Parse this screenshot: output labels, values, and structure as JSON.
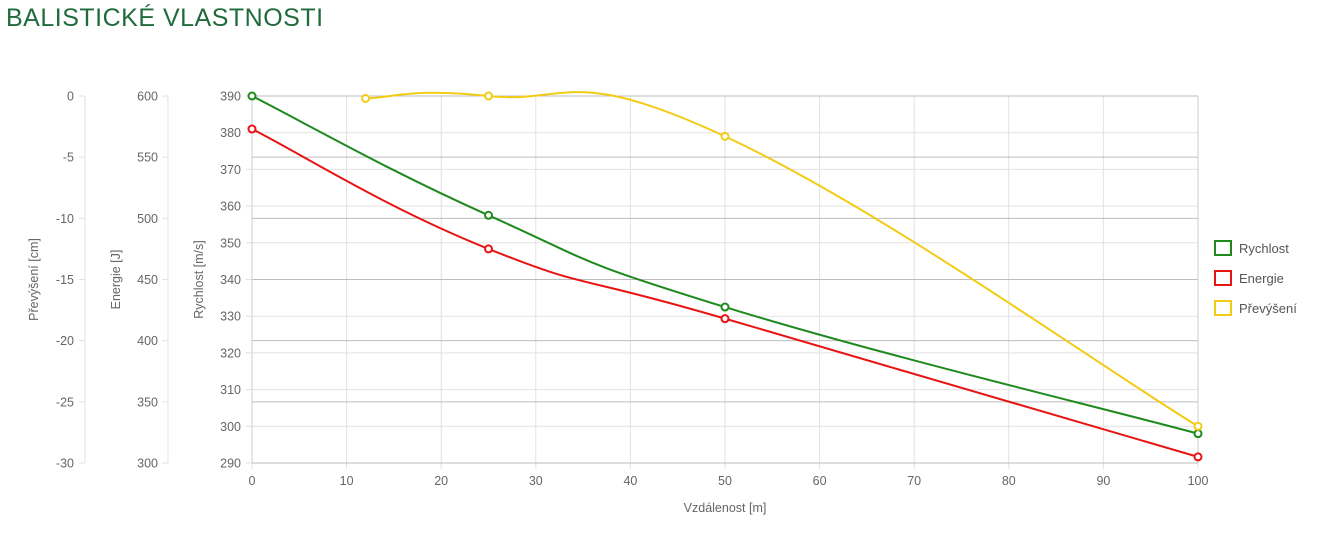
{
  "page": {
    "title": "BALISTICKÉ VLASTNOSTI"
  },
  "chart_data": {
    "type": "line",
    "title": "",
    "xlabel": "Vzdálenost [m]",
    "x_ticks": [
      "0",
      "10",
      "20",
      "30",
      "40",
      "50",
      "60",
      "70",
      "80",
      "90",
      "100"
    ],
    "xlim": [
      0,
      100
    ],
    "grid": true,
    "legend_position": "right",
    "axes": [
      {
        "id": "velocity",
        "label": "Rychlost [m/s]",
        "ylim": [
          290,
          390
        ],
        "ticks": [
          "390",
          "380",
          "370",
          "360",
          "350",
          "340",
          "330",
          "320",
          "310",
          "300",
          "290"
        ]
      },
      {
        "id": "energy",
        "label": "Energie [J]",
        "ylim": [
          300,
          600
        ],
        "ticks": [
          "600",
          "550",
          "500",
          "450",
          "400",
          "350",
          "300"
        ]
      },
      {
        "id": "drop",
        "label": "Převýšení [cm]",
        "ylim": [
          -30,
          0
        ],
        "ticks": [
          "0",
          "-5",
          "-10",
          "-15",
          "-20",
          "-25",
          "-30"
        ]
      }
    ],
    "series": [
      {
        "name": "Rychlost",
        "axis": "velocity",
        "color": "#1e8a1e",
        "x": [
          0,
          25,
          50,
          100
        ],
        "y": [
          390,
          357.5,
          332.5,
          298
        ]
      },
      {
        "name": "Energie",
        "axis": "energy",
        "color": "#e81414",
        "x": [
          0,
          25,
          50,
          100
        ],
        "y": [
          573,
          475,
          418,
          305
        ]
      },
      {
        "name": "Převýšení",
        "axis": "drop",
        "color": "#f2cc14",
        "x": [
          12,
          25,
          50,
          100
        ],
        "y": [
          -0.2,
          0,
          -3.3,
          -27
        ]
      }
    ]
  }
}
